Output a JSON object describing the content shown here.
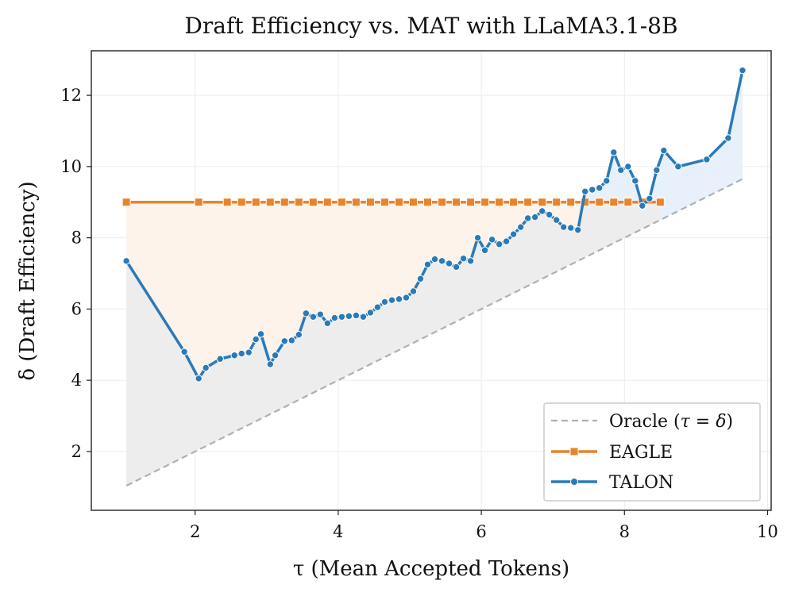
{
  "chart_data": {
    "type": "line",
    "title": "Draft Efficiency vs. MAT with LLaMA3.1-8B",
    "xlabel": "τ (Mean Accepted Tokens)",
    "ylabel": "δ (Draft Efficiency)",
    "xlim": [
      0.55,
      10.05
    ],
    "ylim": [
      0.35,
      13.25
    ],
    "xticks": [
      2,
      4,
      6,
      8,
      10
    ],
    "yticks": [
      2,
      4,
      6,
      8,
      10,
      12
    ],
    "grid": true,
    "legend_position": "bottom-right",
    "colors": {
      "oracle": "#b0b0b0",
      "eagle": "#e8842a",
      "talon": "#2a7ab8",
      "eagle_fill": "#fdf3ea",
      "talon_fill": "#e8f1fb",
      "oracle_fill": "#ebebeb",
      "grid": "#ececec"
    },
    "series": [
      {
        "name": "Oracle",
        "legend_prefix": "Oracle (",
        "legend_math": "τ = δ",
        "legend_suffix": ")",
        "style": "dashed",
        "x": [
          1.04,
          9.65
        ],
        "y": [
          1.04,
          9.65
        ]
      },
      {
        "name": "EAGLE",
        "style": "line-square",
        "x": [
          1.04,
          2.05,
          2.45,
          2.65,
          2.85,
          3.05,
          3.25,
          3.45,
          3.65,
          3.85,
          4.05,
          4.25,
          4.45,
          4.65,
          4.85,
          5.05,
          5.25,
          5.45,
          5.65,
          5.85,
          6.05,
          6.25,
          6.45,
          6.65,
          6.85,
          7.05,
          7.25,
          7.45,
          7.65,
          7.85,
          8.05,
          8.25,
          8.5
        ],
        "y": [
          9.0,
          9.0,
          9.0,
          9.0,
          9.0,
          9.0,
          9.0,
          9.0,
          9.0,
          9.0,
          9.0,
          9.0,
          9.0,
          9.0,
          9.0,
          9.0,
          9.0,
          9.0,
          9.0,
          9.0,
          9.0,
          9.0,
          9.0,
          9.0,
          9.0,
          9.0,
          9.0,
          9.0,
          9.0,
          9.0,
          9.0,
          9.0,
          9.0
        ]
      },
      {
        "name": "TALON",
        "style": "line-dot",
        "x": [
          1.04,
          1.85,
          2.05,
          2.15,
          2.35,
          2.55,
          2.65,
          2.75,
          2.85,
          2.92,
          3.05,
          3.12,
          3.25,
          3.35,
          3.45,
          3.55,
          3.65,
          3.75,
          3.85,
          3.95,
          4.05,
          4.15,
          4.25,
          4.35,
          4.45,
          4.55,
          4.65,
          4.75,
          4.85,
          4.95,
          5.05,
          5.15,
          5.25,
          5.35,
          5.45,
          5.55,
          5.65,
          5.75,
          5.85,
          5.95,
          6.05,
          6.15,
          6.25,
          6.35,
          6.45,
          6.55,
          6.65,
          6.75,
          6.85,
          6.95,
          7.05,
          7.15,
          7.25,
          7.35,
          7.45,
          7.55,
          7.65,
          7.75,
          7.85,
          7.95,
          8.05,
          8.15,
          8.25,
          8.35,
          8.45,
          8.55,
          8.75,
          9.15,
          9.45,
          9.65
        ],
        "y": [
          7.35,
          4.8,
          4.05,
          4.35,
          4.6,
          4.7,
          4.75,
          4.78,
          5.15,
          5.3,
          4.45,
          4.7,
          5.1,
          5.12,
          5.28,
          5.88,
          5.78,
          5.85,
          5.6,
          5.75,
          5.78,
          5.8,
          5.82,
          5.78,
          5.9,
          6.05,
          6.2,
          6.25,
          6.28,
          6.32,
          6.5,
          6.85,
          7.25,
          7.4,
          7.35,
          7.28,
          7.18,
          7.42,
          7.35,
          8.0,
          7.65,
          7.95,
          7.82,
          7.9,
          8.1,
          8.3,
          8.55,
          8.58,
          8.75,
          8.65,
          8.5,
          8.3,
          8.28,
          8.22,
          9.3,
          9.35,
          9.4,
          9.6,
          10.4,
          9.9,
          10.0,
          9.6,
          8.9,
          9.1,
          9.9,
          10.45,
          10.0,
          10.2,
          10.8,
          12.7
        ]
      }
    ]
  }
}
